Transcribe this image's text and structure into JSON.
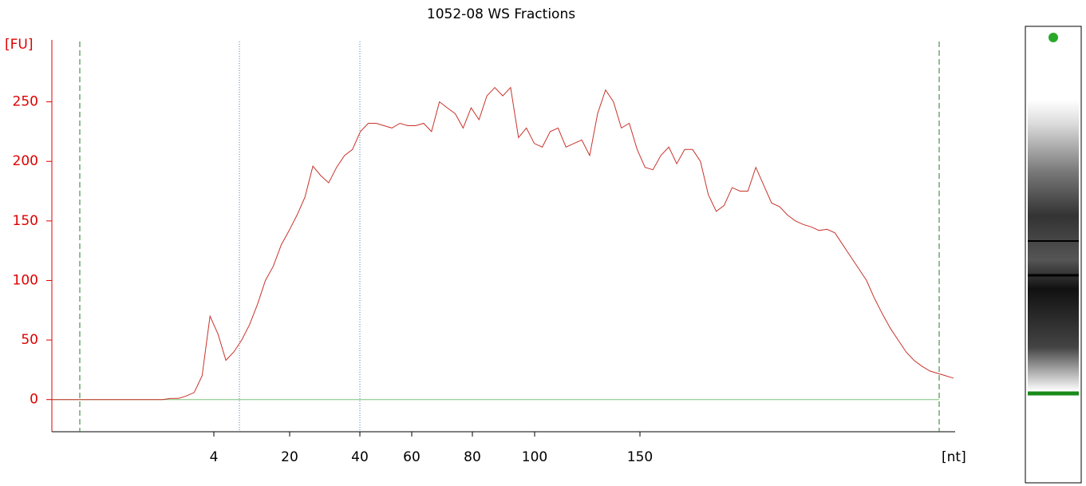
{
  "chart_data": {
    "type": "line",
    "title": "1052-08 WS Fractions",
    "y_label": "[FU]",
    "x_label": "[nt]",
    "ylim": [
      -27,
      302
    ],
    "yticks": [
      0,
      50,
      100,
      150,
      200,
      250
    ],
    "xticks": [
      4,
      20,
      40,
      60,
      80,
      100,
      150
    ],
    "series": [
      {
        "name": "1052-08 WS Fractions",
        "color": "#c8332b",
        "values": [
          0,
          0,
          0,
          0,
          0,
          0,
          0,
          0,
          0,
          0,
          0,
          0,
          0,
          0,
          0,
          1,
          1,
          3,
          6,
          20,
          70,
          55,
          33,
          40,
          50,
          63,
          80,
          100,
          112,
          130,
          142,
          155,
          170,
          196,
          188,
          182,
          195,
          205,
          210,
          225,
          232,
          232,
          230,
          228,
          232,
          230,
          230,
          232,
          225,
          250,
          245,
          240,
          228,
          245,
          235,
          255,
          262,
          255,
          262,
          220,
          228,
          215,
          212,
          225,
          228,
          212,
          215,
          218,
          205,
          240,
          260,
          250,
          228,
          232,
          210,
          195,
          193,
          205,
          212,
          198,
          210,
          210,
          200,
          172,
          158,
          163,
          178,
          175,
          175,
          195,
          180,
          165,
          162,
          155,
          150,
          147,
          145,
          142,
          143,
          140,
          130,
          120,
          110,
          100,
          85,
          72,
          60,
          50,
          40,
          33,
          28,
          24,
          22,
          20,
          18
        ]
      }
    ]
  }
}
